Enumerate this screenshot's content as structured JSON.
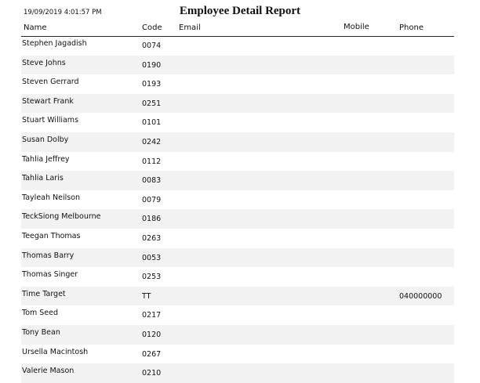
{
  "header": {
    "timestamp": "19/09/2019 4:01:57 PM",
    "title": "Employee Detail Report"
  },
  "columns": [
    "Name",
    "Code",
    "Email",
    "Mobile",
    "Phone"
  ],
  "rows": [
    {
      "name": "Stephen Jagadish",
      "code": "0074"
    },
    {
      "name": "Steve Johns",
      "code": "0190"
    },
    {
      "name": "Steven Gerrard",
      "code": "0193"
    },
    {
      "name": "Stewart Frank",
      "code": "0251"
    },
    {
      "name": "Stuart Williams",
      "code": "0101"
    },
    {
      "name": "Susan Dolby",
      "code": "0242"
    },
    {
      "name": "Tahlia Jeffrey",
      "code": "0112"
    },
    {
      "name": "Tahlia Laris",
      "code": "0083"
    },
    {
      "name": "Tayleah Neilson",
      "code": "0079"
    },
    {
      "name": "TeckSiong Melbourne",
      "code": "0186"
    },
    {
      "name": "Teegan Thomas",
      "code": "0263"
    },
    {
      "name": "Thomas Barry",
      "code": "0053"
    },
    {
      "name": "Thomas Singer",
      "code": "0253"
    },
    {
      "name": "Time Target",
      "code": "TT",
      "phone": "040000000"
    },
    {
      "name": "Tom Seed",
      "code": "0217"
    },
    {
      "name": "Tony Bean",
      "code": "0120"
    },
    {
      "name": "Ursella Macintosh",
      "code": "0267"
    },
    {
      "name": "Valerie Mason",
      "code": "0210"
    }
  ]
}
